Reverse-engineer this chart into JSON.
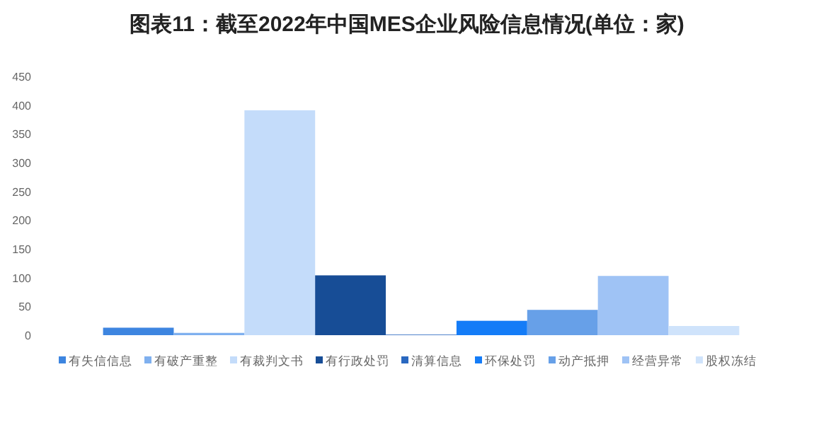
{
  "chart_data": {
    "type": "bar",
    "title": "图表11：截至2022年中国MES企业风险信息情况(单位：家)",
    "categories": [
      null
    ],
    "series": [
      {
        "name": "有失信信息",
        "color": "#3d85e0",
        "values": [
          13
        ]
      },
      {
        "name": "有破产重整",
        "color": "#7fb0ef",
        "values": [
          4
        ]
      },
      {
        "name": "有裁判文书",
        "color": "#c4dcfa",
        "values": [
          391
        ]
      },
      {
        "name": "有行政处罚",
        "color": "#174d96",
        "values": [
          104
        ]
      },
      {
        "name": "清算信息",
        "color": "#2a68c0",
        "values": [
          1
        ]
      },
      {
        "name": "环保处罚",
        "color": "#147cf7",
        "values": [
          25
        ]
      },
      {
        "name": "动产抵押",
        "color": "#67a0e8",
        "values": [
          44
        ]
      },
      {
        "name": "经营异常",
        "color": "#9fc3f5",
        "values": [
          103
        ]
      },
      {
        "name": "股权冻结",
        "color": "#cfe3fb",
        "values": [
          16
        ]
      }
    ],
    "ylim": [
      0,
      450
    ],
    "yticks": [
      0,
      50,
      100,
      150,
      200,
      250,
      300,
      350,
      400,
      450
    ],
    "grid": false,
    "legend": "bottom"
  }
}
